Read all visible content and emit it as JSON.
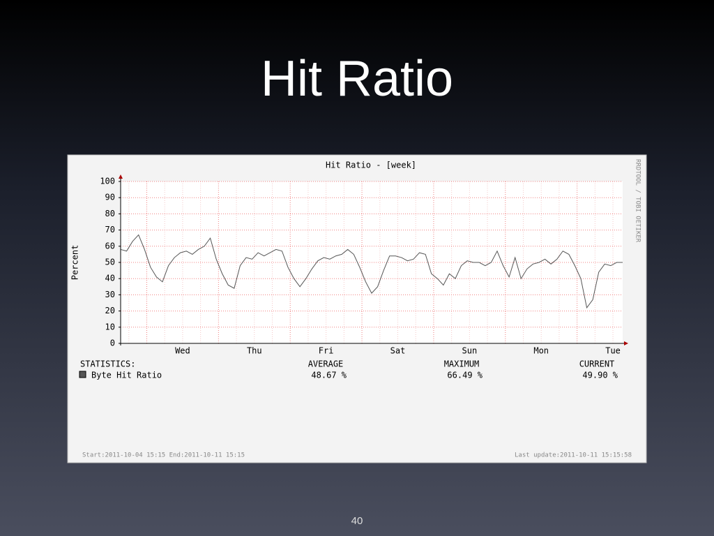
{
  "slide": {
    "title": "Hit Ratio",
    "page_number": "40"
  },
  "chart_data": {
    "type": "line",
    "title": "Hit Ratio - [week]",
    "ylabel": "Percent",
    "watermark": "RRDTOOL / TOBI OETIKER",
    "xlim": [
      0,
      168
    ],
    "xticks": [
      {
        "value": 20.75,
        "label": "Wed"
      },
      {
        "value": 44.75,
        "label": "Thu"
      },
      {
        "value": 68.75,
        "label": "Fri"
      },
      {
        "value": 92.75,
        "label": "Sat"
      },
      {
        "value": 116.75,
        "label": "Sun"
      },
      {
        "value": 140.75,
        "label": "Mon"
      },
      {
        "value": 164.75,
        "label": "Tue"
      }
    ],
    "ylim": [
      0,
      100
    ],
    "yticks": [
      0,
      10,
      20,
      30,
      40,
      50,
      60,
      70,
      80,
      90,
      100
    ],
    "grid": true,
    "x": [
      0,
      2,
      4,
      6,
      8,
      10,
      12,
      14,
      16,
      18,
      20,
      22,
      24,
      26,
      28,
      30,
      32,
      34,
      36,
      38,
      40,
      42,
      44,
      46,
      48,
      50,
      52,
      54,
      56,
      58,
      60,
      62,
      64,
      66,
      68,
      70,
      72,
      74,
      76,
      78,
      80,
      82,
      84,
      86,
      88,
      90,
      92,
      94,
      96,
      98,
      100,
      102,
      104,
      106,
      108,
      110,
      112,
      114,
      116,
      118,
      120,
      122,
      124,
      126,
      128,
      130,
      132,
      134,
      136,
      138,
      140,
      142,
      144,
      146,
      148,
      150,
      152,
      154,
      156,
      158,
      160,
      162,
      164,
      166,
      168
    ],
    "series": [
      {
        "name": "Byte Hit Ratio",
        "color": "#555555",
        "values": [
          58,
          57,
          63,
          67,
          58,
          47,
          41,
          38,
          48,
          53,
          56,
          57,
          55,
          58,
          60,
          65,
          52,
          43,
          36,
          34,
          48,
          53,
          52,
          56,
          54,
          56,
          58,
          57,
          47,
          40,
          35,
          40,
          46,
          51,
          53,
          52,
          54,
          55,
          58,
          55,
          47,
          38,
          31,
          35,
          45,
          54,
          54,
          53,
          51,
          52,
          56,
          55,
          43,
          40,
          36,
          43,
          40,
          48,
          51,
          50,
          50,
          48,
          50,
          57,
          48,
          41,
          53,
          40,
          46,
          49,
          50,
          52,
          49,
          52,
          57,
          55,
          48,
          40,
          22,
          27,
          44,
          49,
          48,
          50,
          50
        ]
      }
    ],
    "stats": {
      "header": "STATISTICS:",
      "columns": [
        "AVERAGE",
        "MAXIMUM",
        "CURRENT"
      ],
      "values": [
        "48.67 %",
        "66.49 %",
        "49.90 %"
      ]
    },
    "footer_start": "Start:2011-10-04 15:15 End:2011-10-11 15:15",
    "footer_update": "Last update:2011-10-11 15:15:58"
  }
}
